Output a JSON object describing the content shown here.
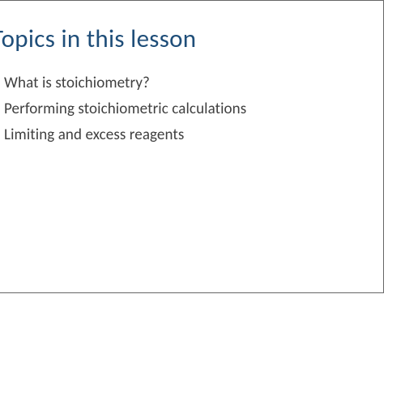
{
  "slide": {
    "title": "Topics in this lesson",
    "title_color": "#1f4e79",
    "title_fontsize": 31,
    "topics": [
      "What is stoichiometry?",
      "Performing stoichiometric calculations",
      "Limiting and excess reagents"
    ],
    "topic_color": "#404040",
    "topic_fontsize": 19,
    "background_color": "#ffffff",
    "border_color": "#666666"
  }
}
